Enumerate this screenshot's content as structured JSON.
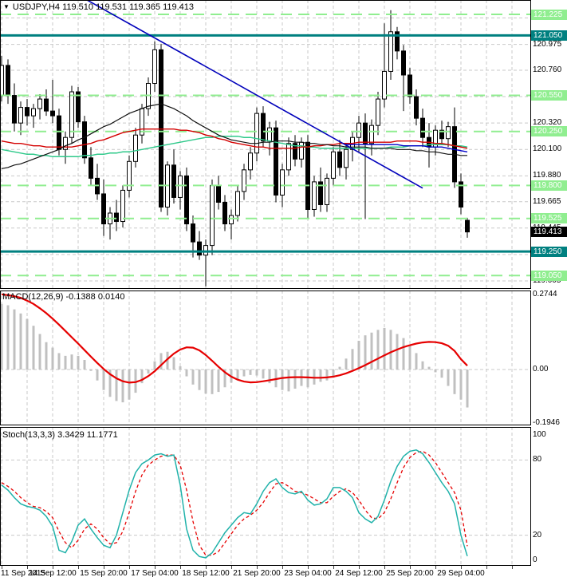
{
  "window": {
    "symbol_title": "USDJPY,H4 119.510 119.531 119.365 119.413",
    "dropdown_icon": "symbol-dropdown-icon"
  },
  "indicators": {
    "macd_label": "MACD(12,26,9) -0.1388 0.0140",
    "stoch_label": "Stoch(13,3,3) 3.3429 11.1771"
  },
  "colors": {
    "grid": "#c9c9c9",
    "level_green": "#90EE90",
    "level_teal": "#008080",
    "badge_green_bg": "#90EE90",
    "badge_teal_bg": "#008080",
    "badge_black_bg": "#000000",
    "candle": "#000000",
    "candle_bull_fill": "#ffffff",
    "ma_black": "#101010",
    "ma_red": "#d40000",
    "ma_green": "#2ec98a",
    "ma_blue": "#0000c8",
    "trendline_blue": "#0000bb",
    "macd_bar": "#c0c0c0",
    "macd_signal": "#e60000",
    "stoch_k": "#20B2AA",
    "stoch_d": "#e60000",
    "border": "#000000"
  },
  "price_axis": {
    "plain_labels": [
      "121.195",
      "120.975",
      "120.760",
      "120.540",
      "120.320",
      "120.100",
      "119.880",
      "119.665",
      "119.445",
      "119.225",
      "119.005"
    ],
    "badges": [
      {
        "text": "121.225",
        "type": "green"
      },
      {
        "text": "121.050",
        "type": "teal"
      },
      {
        "text": "120.550",
        "type": "green"
      },
      {
        "text": "120.250",
        "type": "green"
      },
      {
        "text": "119.800",
        "type": "green"
      },
      {
        "text": "119.525",
        "type": "green"
      },
      {
        "text": "119.413",
        "type": "black"
      },
      {
        "text": "119.250",
        "type": "teal"
      },
      {
        "text": "119.050",
        "type": "green"
      }
    ]
  },
  "time_axis": {
    "labels": [
      {
        "text": "11 Sep 2015",
        "m": 0
      },
      {
        "text": "14 Sep 12:00",
        "m": 2
      },
      {
        "text": "15 Sep 20:00",
        "m": 4
      },
      {
        "text": "17 Sep 04:00",
        "m": 6
      },
      {
        "text": "18 Sep 12:00",
        "m": 8
      },
      {
        "text": "21 Sep 20:00",
        "m": 10
      },
      {
        "text": "23 Sep 04:00",
        "m": 12
      },
      {
        "text": "24 Sep 12:00",
        "m": 14
      },
      {
        "text": "25 Sep 20:00",
        "m": 16
      },
      {
        "text": "29 Sep 04:00",
        "m": 18
      }
    ]
  },
  "chart_data": [
    {
      "type": "candlestick",
      "title": "USDJPY,H4",
      "symbol": "USDJPY",
      "timeframe": "H4",
      "current_bar": {
        "open": 119.51,
        "high": 119.531,
        "low": 119.365,
        "close": 119.413
      },
      "ylim": [
        118.95,
        121.35
      ],
      "grid_prices": [
        121.195,
        120.975,
        120.76,
        120.54,
        120.32,
        120.1,
        119.88,
        119.665,
        119.445,
        119.225,
        119.005
      ],
      "levels_green": [
        121.225,
        120.55,
        120.25,
        119.8,
        119.525,
        119.05
      ],
      "levels_teal": [
        121.05,
        119.25
      ],
      "trendline": {
        "x1": 109,
        "price1": 121.345,
        "x2": 530,
        "price2": 119.778
      },
      "times": [
        "11 Sep 04:00",
        "11 Sep 08:00",
        "11 Sep 12:00",
        "11 Sep 16:00",
        "11 Sep 20:00",
        "14 Sep 00:00",
        "14 Sep 04:00",
        "14 Sep 08:00",
        "14 Sep 12:00",
        "14 Sep 16:00",
        "14 Sep 20:00",
        "15 Sep 00:00",
        "15 Sep 04:00",
        "15 Sep 08:00",
        "15 Sep 12:00",
        "15 Sep 16:00",
        "15 Sep 20:00",
        "16 Sep 00:00",
        "16 Sep 04:00",
        "16 Sep 08:00",
        "16 Sep 12:00",
        "16 Sep 16:00",
        "16 Sep 20:00",
        "17 Sep 00:00",
        "17 Sep 04:00",
        "17 Sep 08:00",
        "17 Sep 12:00",
        "17 Sep 16:00",
        "17 Sep 20:00",
        "18 Sep 00:00",
        "18 Sep 04:00",
        "18 Sep 08:00",
        "18 Sep 12:00",
        "18 Sep 16:00",
        "18 Sep 20:00",
        "21 Sep 00:00",
        "21 Sep 04:00",
        "21 Sep 08:00",
        "21 Sep 12:00",
        "21 Sep 16:00",
        "21 Sep 20:00",
        "22 Sep 00:00",
        "22 Sep 04:00",
        "22 Sep 08:00",
        "22 Sep 12:00",
        "22 Sep 16:00",
        "22 Sep 20:00",
        "23 Sep 00:00",
        "23 Sep 04:00",
        "23 Sep 08:00",
        "23 Sep 12:00",
        "23 Sep 16:00",
        "23 Sep 20:00",
        "24 Sep 00:00",
        "24 Sep 04:00",
        "24 Sep 08:00",
        "24 Sep 12:00",
        "24 Sep 16:00",
        "24 Sep 20:00",
        "25 Sep 00:00",
        "25 Sep 04:00",
        "25 Sep 08:00",
        "25 Sep 12:00",
        "25 Sep 16:00",
        "25 Sep 20:00",
        "28 Sep 00:00",
        "28 Sep 04:00",
        "28 Sep 08:00",
        "28 Sep 12:00",
        "28 Sep 16:00",
        "28 Sep 20:00",
        "29 Sep 00:00",
        "29 Sep 04:00",
        "29 Sep 08:00"
      ],
      "open": [
        120.55,
        120.8,
        120.55,
        120.32,
        120.45,
        120.38,
        120.44,
        120.52,
        120.42,
        120.38,
        120.1,
        120.2,
        120.58,
        120.33,
        120.03,
        119.86,
        119.73,
        119.48,
        119.57,
        119.5,
        119.76,
        120.0,
        120.22,
        120.44,
        120.65,
        120.93,
        119.62,
        119.97,
        119.7,
        119.88,
        119.48,
        119.33,
        119.22,
        119.3,
        119.8,
        119.66,
        119.48,
        119.55,
        119.75,
        119.93,
        120.07,
        120.4,
        120.17,
        120.28,
        119.72,
        119.93,
        120.15,
        120.02,
        120.16,
        119.6,
        119.83,
        119.64,
        119.86,
        120.08,
        119.95,
        120.1,
        120.2,
        120.32,
        120.15,
        120.3,
        120.52,
        120.75,
        121.08,
        120.92,
        120.72,
        120.54,
        120.36,
        120.2,
        120.12,
        120.26,
        120.19,
        120.29,
        119.83,
        119.51
      ],
      "high": [
        120.88,
        120.85,
        120.65,
        120.5,
        120.52,
        120.48,
        120.56,
        120.6,
        120.68,
        120.44,
        120.25,
        120.63,
        120.62,
        120.38,
        120.12,
        119.98,
        119.85,
        119.62,
        119.68,
        119.8,
        120.05,
        120.28,
        120.48,
        120.7,
        121.0,
        120.98,
        120.0,
        120.1,
        119.92,
        119.95,
        119.55,
        119.42,
        119.35,
        119.85,
        119.88,
        119.72,
        119.6,
        119.8,
        119.98,
        120.12,
        120.45,
        120.46,
        120.33,
        120.34,
        119.98,
        120.2,
        120.22,
        120.2,
        120.22,
        119.88,
        119.95,
        119.9,
        120.12,
        120.18,
        120.15,
        120.25,
        120.38,
        120.4,
        120.35,
        120.58,
        121.15,
        121.26,
        121.12,
        120.97,
        120.78,
        120.6,
        120.44,
        120.32,
        120.3,
        120.34,
        120.33,
        120.45,
        119.9,
        119.531
      ],
      "low": [
        120.5,
        120.48,
        120.25,
        120.22,
        120.3,
        120.28,
        120.35,
        120.38,
        120.32,
        120.05,
        119.98,
        120.15,
        120.28,
        119.98,
        119.8,
        119.68,
        119.38,
        119.35,
        119.42,
        119.45,
        119.7,
        119.95,
        120.15,
        120.38,
        120.58,
        119.58,
        119.55,
        119.65,
        119.6,
        119.42,
        119.2,
        119.18,
        118.96,
        119.22,
        119.6,
        119.42,
        119.35,
        119.5,
        119.68,
        119.85,
        120.0,
        120.12,
        120.05,
        119.66,
        119.62,
        119.88,
        119.96,
        119.95,
        119.52,
        119.54,
        119.58,
        119.58,
        119.8,
        119.88,
        119.85,
        120.0,
        120.08,
        119.52,
        120.05,
        120.22,
        120.45,
        120.68,
        120.85,
        120.42,
        120.48,
        120.3,
        120.12,
        119.95,
        120.05,
        120.14,
        120.12,
        119.78,
        119.56,
        119.365
      ],
      "close": [
        120.8,
        120.55,
        120.32,
        120.45,
        120.38,
        120.44,
        120.52,
        120.42,
        120.38,
        120.1,
        120.2,
        120.58,
        120.33,
        120.03,
        119.86,
        119.73,
        119.48,
        119.57,
        119.5,
        119.76,
        120.0,
        120.22,
        120.44,
        120.65,
        120.93,
        119.62,
        119.97,
        119.7,
        119.88,
        119.48,
        119.33,
        119.22,
        119.3,
        119.8,
        119.66,
        119.48,
        119.55,
        119.75,
        119.93,
        120.07,
        120.4,
        120.17,
        120.28,
        119.72,
        119.93,
        120.15,
        120.02,
        120.16,
        119.6,
        119.83,
        119.64,
        119.86,
        120.08,
        119.95,
        120.1,
        120.2,
        120.32,
        120.15,
        120.3,
        120.52,
        120.75,
        121.08,
        120.92,
        120.72,
        120.54,
        120.36,
        120.2,
        120.12,
        120.26,
        120.19,
        120.29,
        119.83,
        119.62,
        119.413
      ],
      "ma_black": [
        119.94,
        119.95,
        119.97,
        119.98,
        120.0,
        120.02,
        120.04,
        120.06,
        120.08,
        120.1,
        120.13,
        120.15,
        120.18,
        120.2,
        120.23,
        120.26,
        120.29,
        120.31,
        120.34,
        120.37,
        120.4,
        120.42,
        120.44,
        120.46,
        120.47,
        120.48,
        120.46,
        120.44,
        120.41,
        120.38,
        120.34,
        120.31,
        120.28,
        120.25,
        120.22,
        120.2,
        120.18,
        120.17,
        120.16,
        120.15,
        120.15,
        120.16,
        120.16,
        120.17,
        120.17,
        120.17,
        120.16,
        120.16,
        120.15,
        120.15,
        120.14,
        120.14,
        120.13,
        120.13,
        120.12,
        120.12,
        120.12,
        120.12,
        120.11,
        120.11,
        120.11,
        120.11,
        120.1,
        120.1,
        120.1,
        120.09,
        120.09,
        120.08,
        120.08,
        120.07,
        120.06,
        120.06,
        120.05,
        120.05
      ],
      "ma_red": [
        120.17,
        120.16,
        120.15,
        120.15,
        120.14,
        120.13,
        120.13,
        120.12,
        120.12,
        120.12,
        120.12,
        120.12,
        120.13,
        120.14,
        120.15,
        120.17,
        120.18,
        120.2,
        120.22,
        120.24,
        120.25,
        120.26,
        120.27,
        120.27,
        120.27,
        120.27,
        120.27,
        120.27,
        120.26,
        120.26,
        120.25,
        120.24,
        120.22,
        120.21,
        120.19,
        120.18,
        120.16,
        120.15,
        120.14,
        120.13,
        120.12,
        120.12,
        120.11,
        120.11,
        120.11,
        120.11,
        120.11,
        120.12,
        120.12,
        120.13,
        120.13,
        120.14,
        120.14,
        120.15,
        120.15,
        120.15,
        120.16,
        120.16,
        120.16,
        120.16,
        120.16,
        120.16,
        120.17,
        120.17,
        120.17,
        120.17,
        120.16,
        120.16,
        120.15,
        120.15,
        120.14,
        120.13,
        120.12,
        120.11
      ],
      "ma_green": [
        120.1,
        120.09,
        120.08,
        120.07,
        120.06,
        120.06,
        120.05,
        120.05,
        120.04,
        120.04,
        120.04,
        120.04,
        120.04,
        120.05,
        120.05,
        120.06,
        120.06,
        120.07,
        120.07,
        120.08,
        120.08,
        120.09,
        120.1,
        120.11,
        120.12,
        120.13,
        120.14,
        120.15,
        120.16,
        120.17,
        120.18,
        120.19,
        120.2,
        120.2,
        120.21,
        120.21,
        120.21,
        120.21,
        120.2,
        120.2,
        120.19,
        120.18,
        120.17,
        120.16,
        120.15,
        120.14,
        120.13,
        120.13,
        120.12,
        120.12,
        120.11,
        120.11,
        120.11,
        120.11,
        120.11,
        120.11,
        120.11,
        120.11,
        120.11,
        120.11,
        120.11,
        120.12,
        120.12,
        120.12,
        120.13,
        120.13,
        120.13,
        120.14,
        120.14,
        120.14,
        120.14,
        120.13,
        120.13,
        120.12
      ],
      "ma_blue": {
        "start": 54,
        "values": [
          120.14,
          120.14,
          120.14,
          120.14,
          120.14,
          120.14,
          120.14,
          120.14,
          120.14,
          120.13,
          120.13,
          120.13,
          120.13,
          120.12,
          120.12,
          120.12,
          120.11,
          120.1,
          120.09,
          120.08
        ]
      }
    },
    {
      "type": "bar",
      "title": "MACD(12,26,9)",
      "value_main": -0.1388,
      "value_signal": 0.014,
      "axis_labels": [
        0.2744,
        0.0,
        -0.1946
      ],
      "ylim": [
        -0.1946,
        0.2744
      ],
      "histogram": [
        0.24,
        0.235,
        0.22,
        0.205,
        0.185,
        0.16,
        0.13,
        0.1,
        0.08,
        0.06,
        0.05,
        0.055,
        0.05,
        0.035,
        -0.005,
        -0.04,
        -0.075,
        -0.1,
        -0.115,
        -0.12,
        -0.11,
        -0.085,
        -0.05,
        -0.015,
        0.03,
        0.06,
        0.065,
        0.045,
        0.012,
        -0.025,
        -0.055,
        -0.075,
        -0.088,
        -0.09,
        -0.082,
        -0.065,
        -0.048,
        -0.035,
        -0.025,
        -0.02,
        -0.022,
        -0.033,
        -0.05,
        -0.065,
        -0.075,
        -0.08,
        -0.07,
        -0.06,
        -0.065,
        -0.055,
        -0.045,
        -0.04,
        -0.03,
        0.01,
        0.04,
        0.075,
        0.105,
        0.125,
        0.135,
        0.145,
        0.152,
        0.145,
        0.13,
        0.115,
        0.09,
        0.06,
        0.03,
        0.01,
        -0.01,
        -0.03,
        -0.06,
        -0.09,
        -0.11,
        -0.1388
      ],
      "signal": [
        0.275,
        0.272,
        0.268,
        0.262,
        0.252,
        0.24,
        0.224,
        0.206,
        0.186,
        0.164,
        0.141,
        0.118,
        0.095,
        0.071,
        0.047,
        0.024,
        0.002,
        -0.017,
        -0.032,
        -0.043,
        -0.048,
        -0.046,
        -0.038,
        -0.024,
        -0.006,
        0.016,
        0.038,
        0.058,
        0.073,
        0.081,
        0.08,
        0.07,
        0.053,
        0.032,
        0.01,
        -0.01,
        -0.026,
        -0.037,
        -0.044,
        -0.047,
        -0.046,
        -0.043,
        -0.039,
        -0.035,
        -0.031,
        -0.029,
        -0.028,
        -0.028,
        -0.029,
        -0.03,
        -0.03,
        -0.029,
        -0.026,
        -0.021,
        -0.014,
        -0.005,
        0.005,
        0.016,
        0.028,
        0.04,
        0.052,
        0.063,
        0.073,
        0.082,
        0.089,
        0.095,
        0.099,
        0.101,
        0.1,
        0.096,
        0.087,
        0.068,
        0.038,
        0.014
      ]
    },
    {
      "type": "line",
      "title": "Stoch(13,3,3)",
      "value_k": 3.3429,
      "value_d": 11.1771,
      "axis_labels": [
        100,
        80,
        20,
        0
      ],
      "levels": [
        80,
        20
      ],
      "ylim": [
        0,
        100
      ],
      "k": [
        60,
        56,
        50,
        45,
        43,
        42,
        40,
        35,
        27,
        8,
        6,
        15,
        28,
        33,
        25,
        18,
        12,
        10,
        20,
        38,
        56,
        70,
        77,
        80,
        84,
        85,
        83,
        84,
        60,
        25,
        8,
        3,
        2,
        6,
        14,
        22,
        28,
        34,
        38,
        37,
        45,
        55,
        62,
        65,
        58,
        54,
        53,
        55,
        48,
        44,
        45,
        49,
        58,
        58,
        55,
        50,
        38,
        33,
        30,
        35,
        48,
        63,
        75,
        83,
        87,
        88,
        85,
        78,
        70,
        62,
        55,
        45,
        20,
        3.3
      ],
      "d": [
        62,
        59,
        55,
        50,
        46,
        43,
        42,
        39,
        34,
        23,
        14,
        10,
        16,
        25,
        29,
        25,
        18,
        13,
        14,
        23,
        38,
        55,
        68,
        76,
        80,
        83,
        84,
        84,
        76,
        56,
        31,
        12,
        4,
        4,
        7,
        14,
        21,
        28,
        33,
        36,
        40,
        46,
        54,
        61,
        62,
        59,
        55,
        54,
        52,
        49,
        46,
        46,
        51,
        55,
        57,
        54,
        48,
        40,
        34,
        33,
        38,
        49,
        62,
        74,
        82,
        86,
        87,
        84,
        78,
        70,
        62,
        54,
        40,
        11.2
      ]
    }
  ]
}
